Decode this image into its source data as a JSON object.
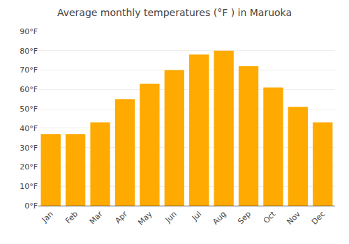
{
  "chart_data": {
    "type": "bar",
    "title": "Average monthly temperatures (°F ) in Maruoka",
    "categories": [
      "Jan",
      "Feb",
      "Mar",
      "Apr",
      "May",
      "Jun",
      "Jul",
      "Aug",
      "Sep",
      "Oct",
      "Nov",
      "Dec"
    ],
    "values": [
      37,
      37,
      43,
      55,
      63,
      70,
      78,
      80,
      72,
      61,
      51,
      43
    ],
    "color": "#FFAA00",
    "ylim": [
      0,
      90
    ],
    "yticks": [
      {
        "value": 0,
        "label": "0°F"
      },
      {
        "value": 10,
        "label": "10°F"
      },
      {
        "value": 20,
        "label": "20°F"
      },
      {
        "value": 30,
        "label": "30°F"
      },
      {
        "value": 40,
        "label": "40°F"
      },
      {
        "value": 50,
        "label": "50°F"
      },
      {
        "value": 60,
        "label": "60°F"
      },
      {
        "value": 70,
        "label": "70°F"
      },
      {
        "value": 80,
        "label": "80°F"
      },
      {
        "value": 90,
        "label": "90°F"
      }
    ],
    "grid": true
  }
}
